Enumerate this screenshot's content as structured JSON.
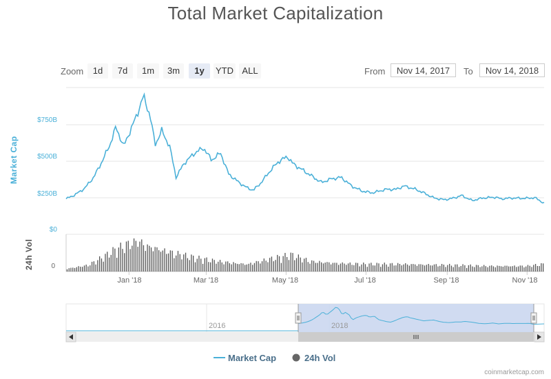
{
  "chart_data": {
    "type": "line",
    "title": "Total Market Capitalization",
    "series": [
      {
        "name": "Market Cap",
        "color": "#4ab0d8",
        "x": [
          "2017-11-14",
          "2017-11-21",
          "2017-11-28",
          "2017-12-05",
          "2017-12-10",
          "2017-12-17",
          "2017-12-22",
          "2017-12-28",
          "2018-01-02",
          "2018-01-07",
          "2018-01-12",
          "2018-01-17",
          "2018-01-21",
          "2018-01-26",
          "2018-02-01",
          "2018-02-06",
          "2018-02-12",
          "2018-02-20",
          "2018-02-27",
          "2018-03-05",
          "2018-03-12",
          "2018-03-18",
          "2018-03-26",
          "2018-04-01",
          "2018-04-06",
          "2018-04-12",
          "2018-04-18",
          "2018-04-25",
          "2018-05-02",
          "2018-05-06",
          "2018-05-12",
          "2018-05-20",
          "2018-05-28",
          "2018-06-04",
          "2018-06-12",
          "2018-06-20",
          "2018-06-28",
          "2018-07-06",
          "2018-07-16",
          "2018-07-24",
          "2018-07-30",
          "2018-08-08",
          "2018-08-14",
          "2018-08-22",
          "2018-08-30",
          "2018-09-06",
          "2018-09-12",
          "2018-09-20",
          "2018-09-28",
          "2018-10-08",
          "2018-10-12",
          "2018-10-20",
          "2018-10-30",
          "2018-11-07",
          "2018-11-14"
        ],
        "values": [
          205,
          230,
          265,
          330,
          400,
          510,
          620,
          510,
          600,
          690,
          800,
          690,
          520,
          600,
          510,
          330,
          410,
          470,
          500,
          430,
          470,
          350,
          300,
          270,
          255,
          300,
          360,
          420,
          450,
          410,
          380,
          340,
          300,
          320,
          330,
          280,
          250,
          240,
          260,
          260,
          280,
          260,
          240,
          210,
          200,
          210,
          225,
          195,
          210,
          215,
          205,
          210,
          208,
          212,
          180
        ]
      },
      {
        "name": "24h Vol",
        "color": "#555555",
        "x": [
          "2017-11-14",
          "2017-12-01",
          "2017-12-15",
          "2017-12-22",
          "2018-01-01",
          "2018-01-07",
          "2018-01-15",
          "2018-01-25",
          "2018-02-05",
          "2018-02-20",
          "2018-03-10",
          "2018-04-01",
          "2018-04-20",
          "2018-05-05",
          "2018-05-20",
          "2018-06-10",
          "2018-07-01",
          "2018-08-01",
          "2018-09-01",
          "2018-10-01",
          "2018-11-01",
          "2018-11-14"
        ],
        "values": [
          3,
          7,
          18,
          24,
          30,
          34,
          28,
          24,
          20,
          15,
          11,
          8,
          14,
          18,
          11,
          9,
          8,
          8,
          7,
          6,
          6,
          8
        ]
      }
    ],
    "xlabels": [
      "Jan '18",
      "Mar '18",
      "May '18",
      "Jul '18",
      "Sep '18",
      "Nov '18"
    ],
    "ylabel": "Market Cap",
    "ylabel2": "24h Vol",
    "yticks": [
      "$750B",
      "$500B",
      "$250B",
      "$0"
    ],
    "ylim": [
      0,
      850
    ],
    "vol_ticks": [
      "0"
    ],
    "vol_ylim": [
      0,
      40
    ],
    "grid": true,
    "legend_position": "bottom-center"
  },
  "zoom": {
    "label": "Zoom",
    "buttons": [
      "1d",
      "7d",
      "1m",
      "3m",
      "1y",
      "YTD",
      "ALL"
    ],
    "active": "1y"
  },
  "range": {
    "from_label": "From",
    "from_value": "Nov 14, 2017",
    "to_label": "To",
    "to_value": "Nov 14, 2018"
  },
  "navigator": {
    "labels": [
      "2016",
      "2018"
    ]
  },
  "legend": {
    "items": [
      "Market Cap",
      "24h Vol"
    ]
  },
  "credits": "coinmarketcap.com"
}
